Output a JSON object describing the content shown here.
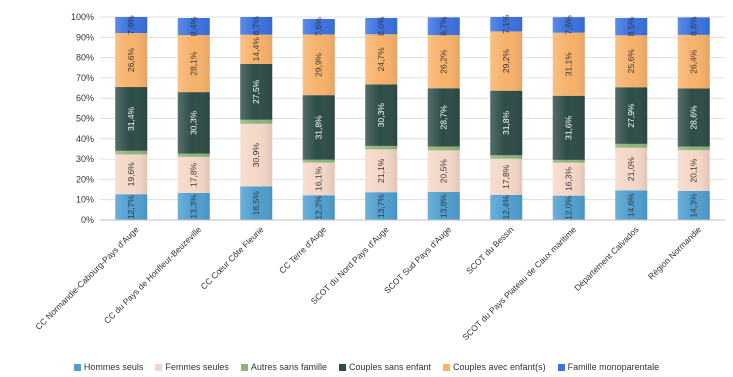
{
  "chart_data": {
    "type": "bar",
    "stacked": true,
    "ylim": [
      0,
      100
    ],
    "yticks": [
      "0%",
      "10%",
      "20%",
      "30%",
      "40%",
      "50%",
      "60%",
      "70%",
      "80%",
      "90%",
      "100%"
    ],
    "categories": [
      "CC Normandie-Cabourg-Pays d'Auge",
      "CC du Pays de Honfleur-Beuzeville",
      "CC Cœur Côte Fleurie",
      "CC Terre d'Auge",
      "SCOT du Nord Pays d'Auge",
      "SCOT Sud Pays d'Auge",
      "SCOT du Bessin",
      "SCOT du Pays Plateau de Caux maritime",
      "Département Calvados",
      "Région Normandie"
    ],
    "series": [
      {
        "name": "Hommes seuls",
        "color": "#4f9fd0",
        "values": [
          12.7,
          13.3,
          16.5,
          12.2,
          13.7,
          13.8,
          12.4,
          12.0,
          14.6,
          14.3
        ],
        "labels": [
          "12,7%",
          "13,3%",
          "16,5%",
          "12,2%",
          "13,7%",
          "13,8%",
          "12,4%",
          "12,0%",
          "14,6%",
          "14,3%"
        ]
      },
      {
        "name": "Femmes seules",
        "color": "#f4d7c7",
        "values": [
          19.6,
          17.8,
          30.9,
          16.1,
          21.1,
          20.5,
          17.8,
          16.3,
          21.0,
          20.1
        ],
        "labels": [
          "19,6%",
          "17,8%",
          "30,9%",
          "16,1%",
          "21,1%",
          "20,5%",
          "17,8%",
          "16,3%",
          "21,0%",
          "20,1%"
        ]
      },
      {
        "name": "Autres sans famille",
        "color": "#8eb47a",
        "values": [
          1.8,
          1.6,
          2.0,
          1.4,
          1.7,
          1.9,
          1.7,
          1.3,
          1.9,
          1.8
        ],
        "labels": [
          "",
          "",
          "",
          "",
          "",
          "",
          "",
          "",
          "",
          ""
        ]
      },
      {
        "name": "Couples sans enfant",
        "color": "#2f4d48",
        "values": [
          31.4,
          30.3,
          27.5,
          31.8,
          30.3,
          28.7,
          31.8,
          31.6,
          27.9,
          28.6
        ],
        "labels": [
          "31,4%",
          "30,3%",
          "27,5%",
          "31,8%",
          "30,3%",
          "28,7%",
          "31,8%",
          "31,6%",
          "27,9%",
          "28,6%"
        ]
      },
      {
        "name": "Couples avec enfant(s)",
        "color": "#f7b26b",
        "values": [
          26.6,
          28.1,
          14.4,
          29.9,
          24.7,
          26.2,
          29.2,
          31.1,
          25.6,
          26.4
        ],
        "labels": [
          "26,6%",
          "28,1%",
          "14,4%",
          "29,9%",
          "24,7%",
          "26,2%",
          "29,2%",
          "31,1%",
          "25,6%",
          "26,4%"
        ]
      },
      {
        "name": "Famille monoparentale",
        "color": "#3b72e0",
        "values": [
          7.9,
          8.4,
          8.7,
          7.6,
          8.0,
          8.7,
          7.1,
          7.6,
          8.5,
          8.6
        ],
        "labels": [
          "7,9%",
          "8,4%",
          "8,7%",
          "7,6%",
          "8,0%",
          "8,7%",
          "7,1%",
          "7,6%",
          "8,5%",
          "8,6%"
        ]
      }
    ]
  }
}
